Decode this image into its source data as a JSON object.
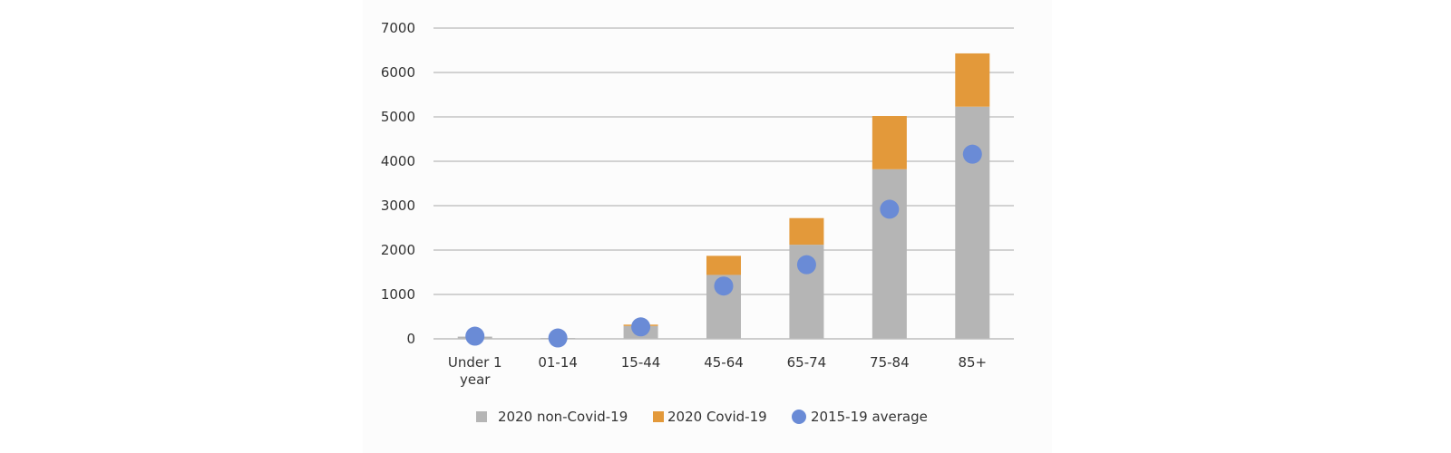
{
  "chart_data": {
    "type": "bar",
    "stacked": true,
    "categories": [
      [
        "Under 1",
        "year"
      ],
      [
        "01-14"
      ],
      [
        "15-44"
      ],
      [
        "45-64"
      ],
      [
        "65-74"
      ],
      [
        "75-84"
      ],
      [
        "85+"
      ]
    ],
    "series": [
      {
        "name": "2020 non-Covid-19",
        "kind": "bar",
        "color": "#b5b5b5",
        "values": [
          50,
          20,
          290,
          1440,
          2120,
          3820,
          5230
        ]
      },
      {
        "name": "2020 Covid-19",
        "kind": "bar",
        "color": "#e3993a",
        "values": [
          0,
          0,
          30,
          430,
          600,
          1200,
          1200
        ]
      },
      {
        "name": "2015-19 average",
        "kind": "scatter",
        "color": "#6a8bd6",
        "values": [
          60,
          20,
          270,
          1190,
          1670,
          2920,
          4160
        ]
      }
    ],
    "ylim": [
      0,
      7000
    ],
    "yticks": [
      "0",
      "1000",
      "2000",
      "3000",
      "4000",
      "5000",
      "6000",
      "7000"
    ],
    "grid": true,
    "legend_position": "bottom"
  }
}
